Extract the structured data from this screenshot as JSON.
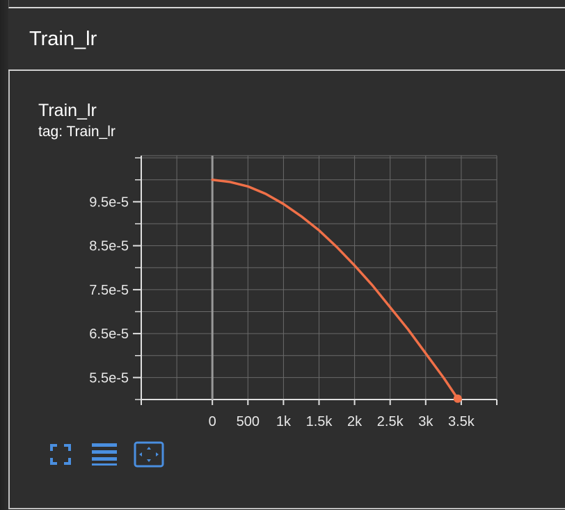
{
  "section": {
    "title": "Train_lr"
  },
  "card": {
    "title": "Train_lr",
    "tag": "tag: Train_lr"
  },
  "toolbar": {
    "fullscreen_icon": "fullscreen-icon",
    "menu_icon": "menu-lines-icon",
    "fit_icon": "fit-domain-icon"
  },
  "colors": {
    "line": "#f07048",
    "grid": "#6a6a6a",
    "axis": "#e0e0e0",
    "zero_line": "#9a9a9a",
    "accent": "#4a8fe0"
  },
  "chart_data": {
    "type": "line",
    "title": "Train_lr",
    "subtitle": "tag: Train_lr",
    "xlabel": "",
    "ylabel": "",
    "xlim": [
      -1000,
      4000
    ],
    "ylim": [
      5e-05,
      0.0001055
    ],
    "x_ticks": [
      0,
      500,
      1000,
      1500,
      2000,
      2500,
      3000,
      3500
    ],
    "x_tick_labels": [
      "0",
      "500",
      "1k",
      "1.5k",
      "2k",
      "2.5k",
      "3k",
      "3.5k"
    ],
    "y_ticks": [
      5.5e-05,
      6.5e-05,
      7.5e-05,
      8.5e-05,
      9.5e-05
    ],
    "y_tick_labels": [
      "5.5e-5",
      "6.5e-5",
      "7.5e-5",
      "8.5e-5",
      "9.5e-5"
    ],
    "grid": true,
    "series": [
      {
        "x": [
          0,
          250,
          500,
          750,
          1000,
          1250,
          1500,
          1750,
          2000,
          2250,
          2500,
          2750,
          3000,
          3250,
          3450
        ],
        "values": [
          0.0001,
          9.95e-05,
          9.85e-05,
          9.68e-05,
          9.45e-05,
          9.17e-05,
          8.85e-05,
          8.47e-05,
          8.05e-05,
          7.6e-05,
          7.1e-05,
          6.6e-05,
          6.05e-05,
          5.5e-05,
          5.02e-05
        ]
      }
    ]
  }
}
